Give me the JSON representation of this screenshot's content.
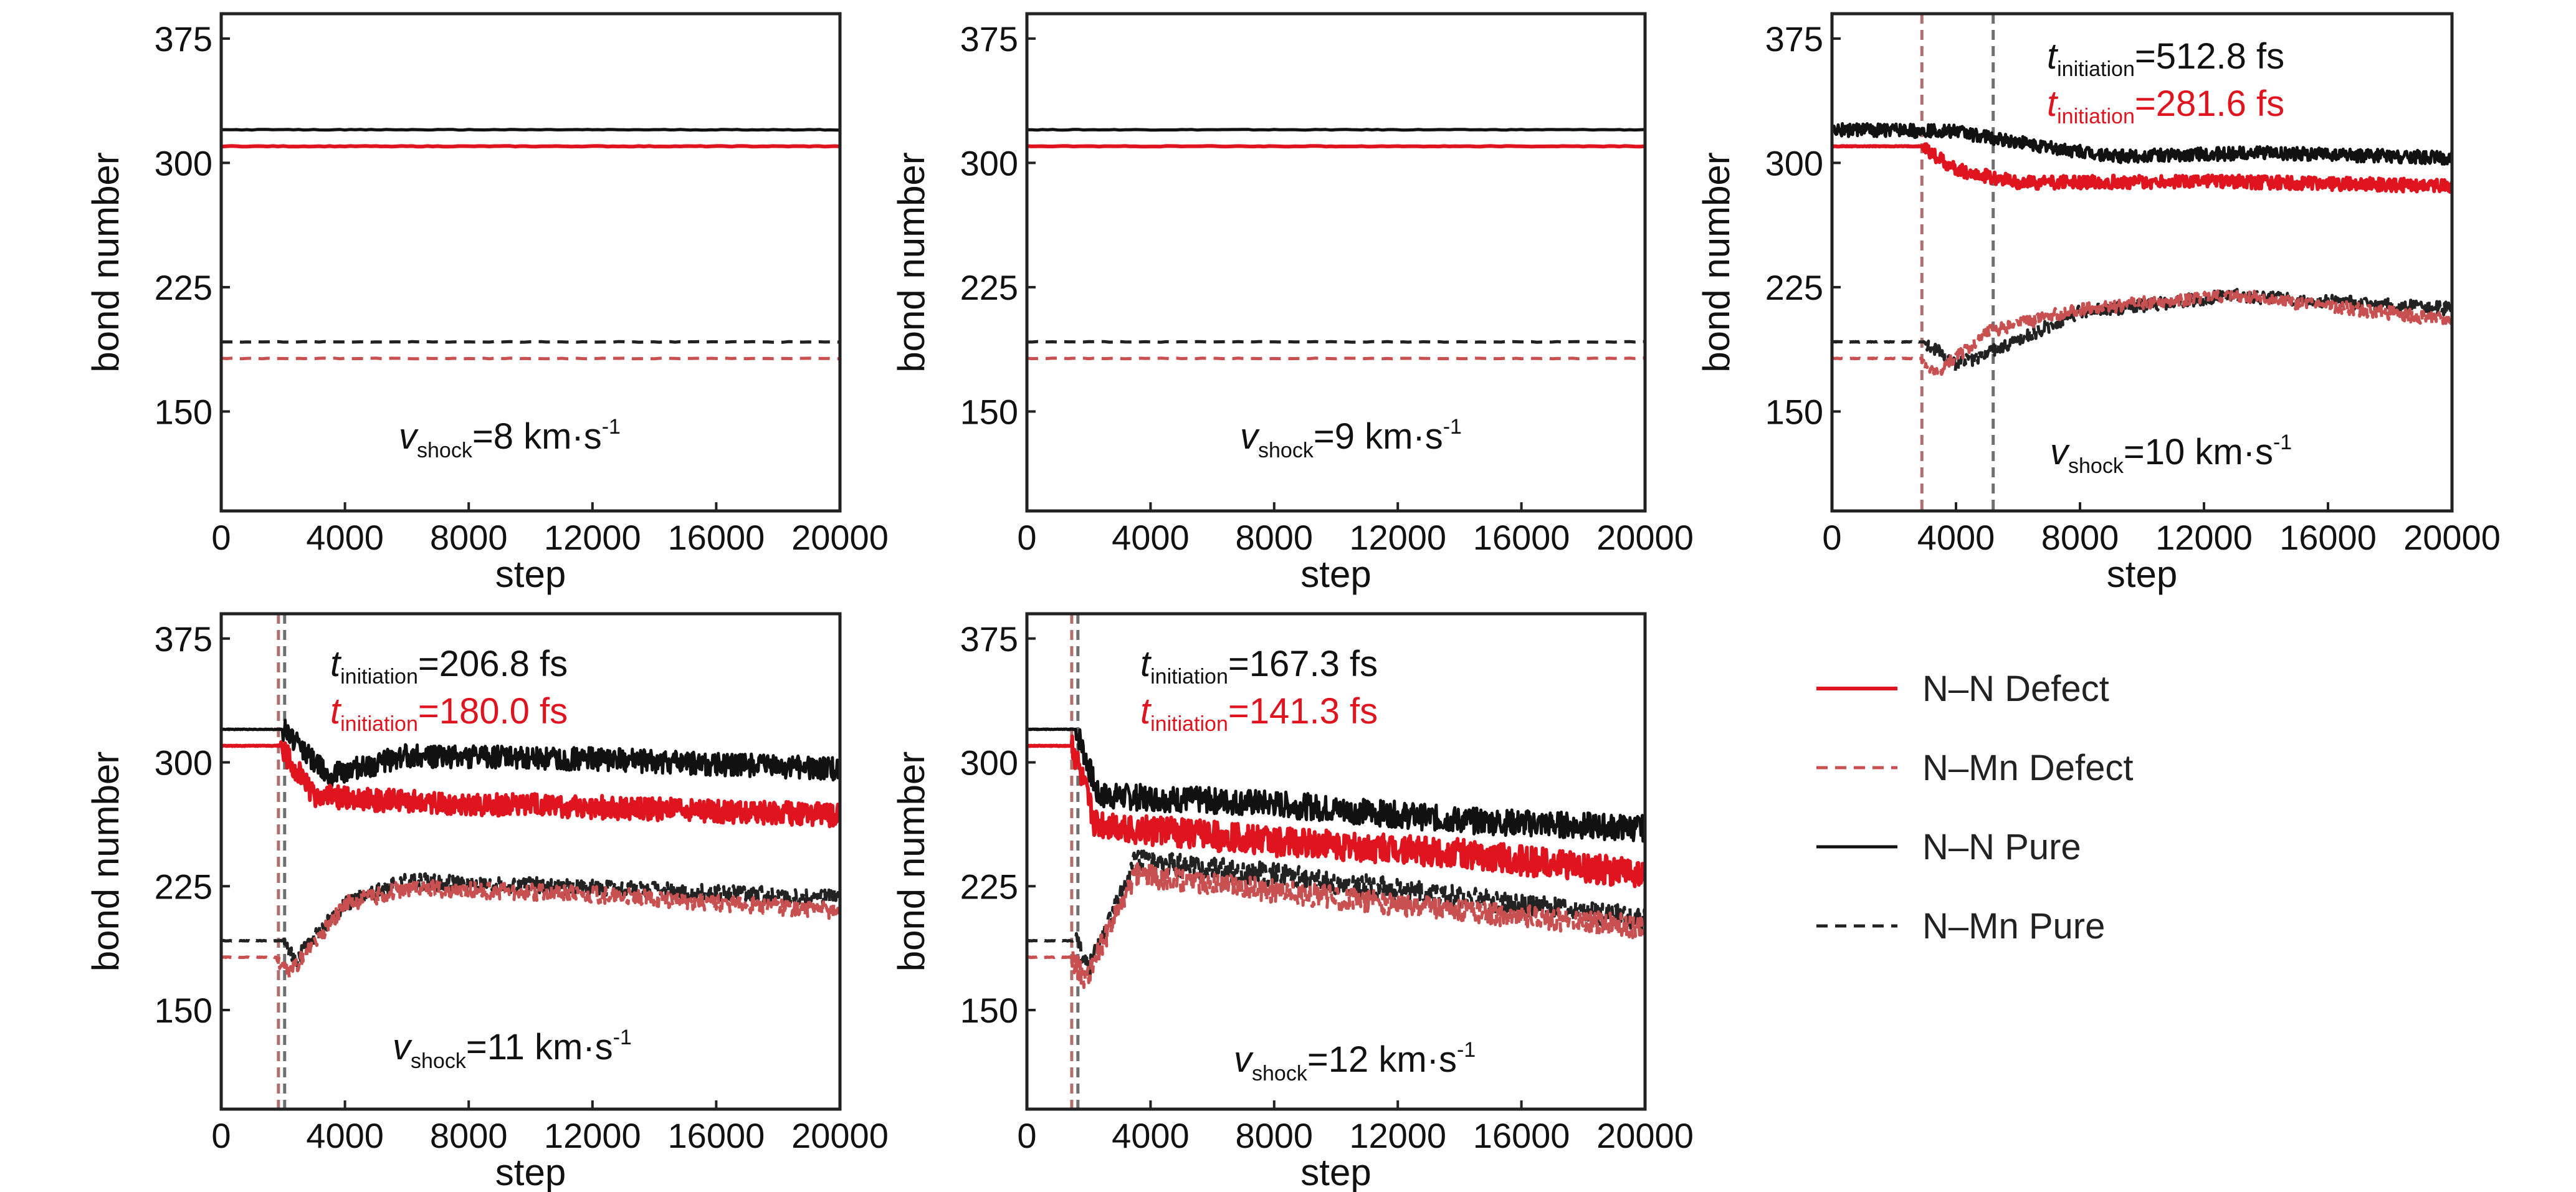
{
  "colors": {
    "nn_defect": "#e0141e",
    "nmn_defect": "#c85050",
    "nn_pure": "#111111",
    "nmn_pure": "#222222",
    "init_line_defect": "#b07070",
    "init_line_pure": "#707070"
  },
  "legend": {
    "placement": "right of bottom row",
    "items": [
      {
        "key": "nn_defect",
        "label": "N–N Defect",
        "style": "solid"
      },
      {
        "key": "nmn_defect",
        "label": "N–Mn Defect",
        "style": "dashed"
      },
      {
        "key": "nn_pure",
        "label": "N–N Pure",
        "style": "solid"
      },
      {
        "key": "nmn_pure",
        "label": "N–Mn Pure",
        "style": "dashed"
      }
    ]
  },
  "chart_data": [
    {
      "type": "line",
      "xlabel": "step",
      "ylabel": "bond number",
      "xlim": [
        0,
        20000
      ],
      "ylim": [
        90,
        390
      ],
      "xticks": [
        "0",
        "4000",
        "8000",
        "12000",
        "16000",
        "20000"
      ],
      "yticks": [
        "150",
        "225",
        "300",
        "375"
      ],
      "shock_symbol": "v",
      "shock_sub": "shock",
      "shock_text": "=8 km·s",
      "shock_sup": "-1",
      "initiation": [],
      "series": [
        {
          "key": "nn_pure",
          "profile": [
            [
              0,
              320
            ],
            [
              20000,
              320
            ]
          ],
          "noise": 0.4
        },
        {
          "key": "nn_defect",
          "profile": [
            [
              0,
              310
            ],
            [
              20000,
              310
            ]
          ],
          "noise": 0.2
        },
        {
          "key": "nmn_pure",
          "profile": [
            [
              0,
              192
            ],
            [
              20000,
              192
            ]
          ],
          "noise": 0.4
        },
        {
          "key": "nmn_defect",
          "profile": [
            [
              0,
              182
            ],
            [
              20000,
              182
            ]
          ],
          "noise": 0.6
        }
      ]
    },
    {
      "type": "line",
      "xlabel": "step",
      "ylabel": "bond number",
      "xlim": [
        0,
        20000
      ],
      "ylim": [
        90,
        390
      ],
      "xticks": [
        "0",
        "4000",
        "8000",
        "12000",
        "16000",
        "20000"
      ],
      "yticks": [
        "150",
        "225",
        "300",
        "375"
      ],
      "shock_symbol": "v",
      "shock_sub": "shock",
      "shock_text": "=9 km·s",
      "shock_sup": "-1",
      "initiation": [],
      "series": [
        {
          "key": "nn_pure",
          "profile": [
            [
              0,
              320
            ],
            [
              20000,
              320
            ]
          ],
          "noise": 0.4
        },
        {
          "key": "nn_defect",
          "profile": [
            [
              0,
              310
            ],
            [
              20000,
              310
            ]
          ],
          "noise": 0.2
        },
        {
          "key": "nmn_pure",
          "profile": [
            [
              0,
              192
            ],
            [
              20000,
              192
            ]
          ],
          "noise": 0.4
        },
        {
          "key": "nmn_defect",
          "profile": [
            [
              0,
              182
            ],
            [
              20000,
              182
            ]
          ],
          "noise": 0.6
        }
      ]
    },
    {
      "type": "line",
      "xlabel": "step",
      "ylabel": "bond number",
      "xlim": [
        0,
        20000
      ],
      "ylim": [
        90,
        390
      ],
      "xticks": [
        "0",
        "4000",
        "8000",
        "12000",
        "16000",
        "20000"
      ],
      "yticks": [
        "150",
        "225",
        "300",
        "375"
      ],
      "shock_symbol": "v",
      "shock_sub": "shock",
      "shock_text": "=10 km·s",
      "shock_sup": "-1",
      "initiation": [
        {
          "key": "nn_pure",
          "sym": "t",
          "sub": "initiation",
          "text": "=512.8 fs"
        },
        {
          "key": "nn_defect",
          "sym": "t",
          "sub": "initiation",
          "text": "=281.6 fs"
        }
      ],
      "vlines": [
        {
          "x": 2900,
          "key": "init_line_defect"
        },
        {
          "x": 5200,
          "key": "init_line_pure"
        }
      ],
      "series": [
        {
          "key": "nn_pure",
          "profile": [
            [
              0,
              320
            ],
            [
              4000,
              319
            ],
            [
              5400,
              314
            ],
            [
              9000,
              304
            ],
            [
              14000,
              306
            ],
            [
              20000,
              303
            ]
          ],
          "noise": 4
        },
        {
          "key": "nn_defect",
          "profile": [
            [
              0,
              310
            ],
            [
              2900,
              310
            ],
            [
              4000,
              296
            ],
            [
              6000,
              288
            ],
            [
              12000,
              289
            ],
            [
              20000,
              286
            ]
          ],
          "noise": 4
        },
        {
          "key": "nmn_pure",
          "profile": [
            [
              0,
              192
            ],
            [
              3000,
              192
            ],
            [
              4000,
              178
            ],
            [
              5400,
              188
            ],
            [
              8000,
              210
            ],
            [
              13000,
              220
            ],
            [
              20000,
              212
            ]
          ],
          "noise": 4
        },
        {
          "key": "nmn_defect",
          "profile": [
            [
              0,
              182
            ],
            [
              2900,
              182
            ],
            [
              3300,
              172
            ],
            [
              5000,
              198
            ],
            [
              8000,
              212
            ],
            [
              13000,
              220
            ],
            [
              20000,
              205
            ]
          ],
          "noise": 4
        }
      ]
    },
    {
      "type": "line",
      "xlabel": "step",
      "ylabel": "bond number",
      "xlim": [
        0,
        20000
      ],
      "ylim": [
        90,
        390
      ],
      "xticks": [
        "0",
        "4000",
        "8000",
        "12000",
        "16000",
        "20000"
      ],
      "yticks": [
        "150",
        "225",
        "300",
        "375"
      ],
      "shock_symbol": "v",
      "shock_sub": "shock",
      "shock_text": "=11 km·s",
      "shock_sup": "-1",
      "initiation": [
        {
          "key": "nn_pure",
          "sym": "t",
          "sub": "initiation",
          "text": "=206.8 fs"
        },
        {
          "key": "nn_defect",
          "sym": "t",
          "sub": "initiation",
          "text": "=180.0 fs"
        }
      ],
      "vlines": [
        {
          "x": 1850,
          "key": "init_line_defect"
        },
        {
          "x": 2050,
          "key": "init_line_pure"
        }
      ],
      "series": [
        {
          "key": "nn_pure",
          "profile": [
            [
              0,
              320
            ],
            [
              2000,
              320
            ],
            [
              3500,
              292
            ],
            [
              6000,
              304
            ],
            [
              12000,
              302
            ],
            [
              20000,
              296
            ]
          ],
          "noise": 7
        },
        {
          "key": "nn_defect",
          "profile": [
            [
              0,
              310
            ],
            [
              1900,
              310
            ],
            [
              3000,
              280
            ],
            [
              6000,
              276
            ],
            [
              12000,
              273
            ],
            [
              20000,
              268
            ]
          ],
          "noise": 7
        },
        {
          "key": "nmn_pure",
          "profile": [
            [
              0,
              192
            ],
            [
              2000,
              192
            ],
            [
              2400,
              180
            ],
            [
              4000,
              215
            ],
            [
              6000,
              228
            ],
            [
              12000,
              224
            ],
            [
              20000,
              218
            ]
          ],
          "noise": 5
        },
        {
          "key": "nmn_defect",
          "profile": [
            [
              0,
              182
            ],
            [
              1800,
              182
            ],
            [
              2200,
              172
            ],
            [
              4000,
              214
            ],
            [
              6000,
              224
            ],
            [
              12000,
              220
            ],
            [
              20000,
              210
            ]
          ],
          "noise": 5
        }
      ]
    },
    {
      "type": "line",
      "xlabel": "step",
      "ylabel": "bond number",
      "xlim": [
        0,
        20000
      ],
      "ylim": [
        90,
        390
      ],
      "xticks": [
        "0",
        "4000",
        "8000",
        "12000",
        "16000",
        "20000"
      ],
      "yticks": [
        "150",
        "225",
        "300",
        "375"
      ],
      "shock_symbol": "v",
      "shock_sub": "shock",
      "shock_text": "=12 km·s",
      "shock_sup": "-1",
      "initiation": [
        {
          "key": "nn_pure",
          "sym": "t",
          "sub": "initiation",
          "text": "=167.3 fs"
        },
        {
          "key": "nn_defect",
          "sym": "t",
          "sub": "initiation",
          "text": "=141.3 fs"
        }
      ],
      "vlines": [
        {
          "x": 1450,
          "key": "init_line_defect"
        },
        {
          "x": 1650,
          "key": "init_line_pure"
        }
      ],
      "series": [
        {
          "key": "nn_pure",
          "profile": [
            [
              0,
              320
            ],
            [
              1600,
              320
            ],
            [
              2300,
              280
            ],
            [
              8000,
              275
            ],
            [
              14000,
              265
            ],
            [
              20000,
              260
            ]
          ],
          "noise": 8
        },
        {
          "key": "nn_defect",
          "profile": [
            [
              0,
              310
            ],
            [
              1450,
              310
            ],
            [
              2200,
              262
            ],
            [
              8000,
              252
            ],
            [
              14000,
              245
            ],
            [
              20000,
              232
            ]
          ],
          "noise": 9
        },
        {
          "key": "nmn_pure",
          "profile": [
            [
              0,
              192
            ],
            [
              1600,
              192
            ],
            [
              2000,
              175
            ],
            [
              3500,
              240
            ],
            [
              8000,
              232
            ],
            [
              14000,
              218
            ],
            [
              20000,
              205
            ]
          ],
          "noise": 7
        },
        {
          "key": "nmn_defect",
          "profile": [
            [
              0,
              182
            ],
            [
              1450,
              182
            ],
            [
              1900,
              168
            ],
            [
              3500,
              232
            ],
            [
              8000,
              222
            ],
            [
              14000,
              210
            ],
            [
              20000,
              200
            ]
          ],
          "noise": 7
        }
      ]
    }
  ]
}
